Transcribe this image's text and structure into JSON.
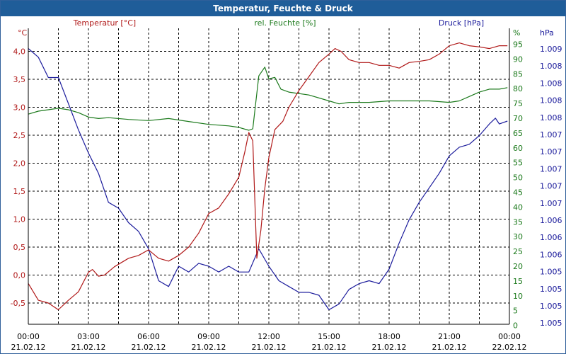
{
  "window": {
    "title": "Temperatur, Feuchte & Druck"
  },
  "chart_data": {
    "type": "line",
    "title": "Temperatur, Feuchte & Druck",
    "grid": true,
    "colors": {
      "temperature": "#b01818",
      "humidity": "#1c7a1c",
      "pressure": "#1c1c9c",
      "grid": "#000000",
      "title_bar": "#1f5d99"
    },
    "x": {
      "range": [
        "21.02.12 00:00",
        "22.02.12 00:00"
      ],
      "ticks": [
        {
          "time": "00:00",
          "date": "21.02.12"
        },
        {
          "time": "03:00",
          "date": "21.02.12"
        },
        {
          "time": "06:00",
          "date": "21.02.12"
        },
        {
          "time": "09:00",
          "date": "21.02.12"
        },
        {
          "time": "12:00",
          "date": "21.02.12"
        },
        {
          "time": "15:00",
          "date": "21.02.12"
        },
        {
          "time": "18:00",
          "date": "21.02.12"
        },
        {
          "time": "21:00",
          "date": "21.02.12"
        },
        {
          "time": "00:00",
          "date": "22.02.12"
        }
      ]
    },
    "axes": {
      "temperature": {
        "unit": "°C",
        "label": "Temperatur [°C]",
        "range": [
          -0.9,
          4.4
        ],
        "ticks": [
          "4,0",
          "3,5",
          "3,0",
          "2,5",
          "2,0",
          "1,5",
          "1,0",
          "0,5",
          "0,0",
          "-0,5"
        ]
      },
      "humidity": {
        "unit": "%",
        "label": "rel. Feuchte [%]",
        "range": [
          0,
          100
        ],
        "ticks": [
          "95",
          "90",
          "85",
          "80",
          "75",
          "70",
          "65",
          "60",
          "55",
          "50",
          "45",
          "40",
          "35",
          "30",
          "25",
          "20",
          "15",
          "10",
          "5",
          "0"
        ]
      },
      "pressure": {
        "unit": "hPa",
        "label": "Druck [hPa]",
        "ticks": [
          "1.009",
          "1.008",
          "1.008",
          "1.008",
          "1.008",
          "1.007",
          "1.007",
          "1.007",
          "1.007",
          "1.007",
          "1.006",
          "1.006",
          "1.006",
          "1.005",
          "1.005",
          "1.005",
          "1.005"
        ]
      }
    },
    "series": [
      {
        "name": "Temperatur [°C]",
        "axis": "temperature",
        "x": [
          0,
          0.5,
          1,
          1.5,
          2,
          2.5,
          3,
          3.2,
          3.5,
          3.8,
          4.3,
          5,
          5.5,
          6,
          6.5,
          7,
          7.5,
          8,
          8.5,
          9,
          9.5,
          10,
          10.5,
          10.8,
          11,
          11.2,
          11.4,
          11.6,
          11.8,
          12,
          12.3,
          12.7,
          13,
          13.5,
          14,
          14.5,
          15,
          15.3,
          15.6,
          16,
          16.5,
          17,
          17.5,
          18,
          18.5,
          19,
          19.5,
          20,
          20.5,
          21,
          21.5,
          22,
          22.5,
          23,
          23.5,
          23.9
        ],
        "values": [
          -0.15,
          -0.45,
          -0.5,
          -0.62,
          -0.45,
          -0.3,
          0.05,
          0.1,
          -0.02,
          0.0,
          0.15,
          0.3,
          0.35,
          0.45,
          0.3,
          0.25,
          0.35,
          0.5,
          0.75,
          1.1,
          1.2,
          1.45,
          1.75,
          2.2,
          2.55,
          2.4,
          0.3,
          0.8,
          1.55,
          2.1,
          2.6,
          2.75,
          3.0,
          3.3,
          3.55,
          3.8,
          3.95,
          4.05,
          4.0,
          3.85,
          3.8,
          3.8,
          3.75,
          3.75,
          3.7,
          3.8,
          3.82,
          3.85,
          3.95,
          4.1,
          4.15,
          4.1,
          4.08,
          4.05,
          4.1,
          4.1
        ]
      },
      {
        "name": "rel. Feuchte [%]",
        "axis": "humidity",
        "x": [
          0,
          0.5,
          1,
          1.5,
          2,
          2.5,
          3,
          3.5,
          4,
          5,
          6,
          7,
          8,
          9,
          10,
          10.5,
          11,
          11.2,
          11.5,
          11.8,
          12,
          12.3,
          12.6,
          13,
          14,
          15,
          15.5,
          16,
          17,
          18,
          19,
          20,
          21,
          21.5,
          22,
          22.5,
          23,
          23.5,
          23.9
        ],
        "values": [
          72,
          73,
          73.5,
          74,
          73.5,
          72.5,
          71,
          70.5,
          70.8,
          70.2,
          69.8,
          70.5,
          69.5,
          68.5,
          68,
          67.5,
          66.5,
          67,
          85,
          88,
          84,
          84.5,
          80.5,
          79.5,
          78.5,
          76.5,
          75.5,
          76,
          76,
          76.5,
          76.5,
          76.5,
          76,
          76.5,
          78,
          79.5,
          80.5,
          80.5,
          81
        ]
      },
      {
        "name": "Druck [hPa]",
        "axis": "pressure",
        "x": [
          0,
          0.5,
          1,
          1.5,
          2,
          2.5,
          3,
          3.5,
          4,
          4.5,
          5,
          5.5,
          6,
          6.5,
          7,
          7.5,
          8,
          8.5,
          9,
          9.5,
          10,
          10.5,
          11,
          11.5,
          12,
          12.5,
          13,
          13.5,
          14,
          14.5,
          15,
          15.5,
          16,
          16.5,
          17,
          17.5,
          18,
          18.5,
          19,
          19.5,
          20,
          20.5,
          21,
          21.5,
          22,
          22.5,
          23,
          23.3,
          23.5,
          23.9
        ],
        "values": [
          95,
          92,
          85,
          85,
          76,
          67,
          59,
          52,
          42,
          40,
          35,
          32,
          26,
          15,
          13,
          20,
          18,
          21,
          20,
          18,
          20,
          18,
          18,
          26,
          20,
          15,
          13,
          11,
          11,
          10,
          5,
          7,
          12,
          14,
          15,
          14,
          19,
          28,
          36,
          42,
          47,
          52,
          58,
          61,
          62,
          65,
          69,
          71,
          69,
          70
        ]
      }
    ]
  }
}
